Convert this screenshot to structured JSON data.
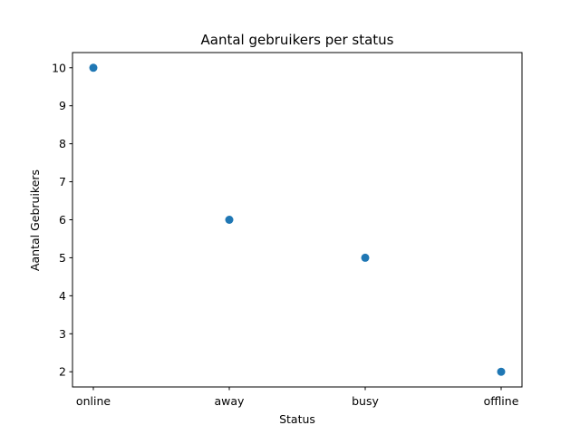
{
  "chart_data": {
    "type": "scatter",
    "title": "Aantal gebruikers per status",
    "xlabel": "Status",
    "ylabel": "Aantal Gebruikers",
    "categories": [
      "online",
      "away",
      "busy",
      "offline"
    ],
    "series": [
      {
        "values": [
          10,
          6,
          5,
          2
        ],
        "color": "#1f77b4"
      }
    ],
    "yticks": [
      "2",
      "3",
      "4",
      "5",
      "6",
      "7",
      "8",
      "9",
      "10"
    ],
    "ylim": [
      1.6,
      10.4
    ],
    "grid": false
  }
}
